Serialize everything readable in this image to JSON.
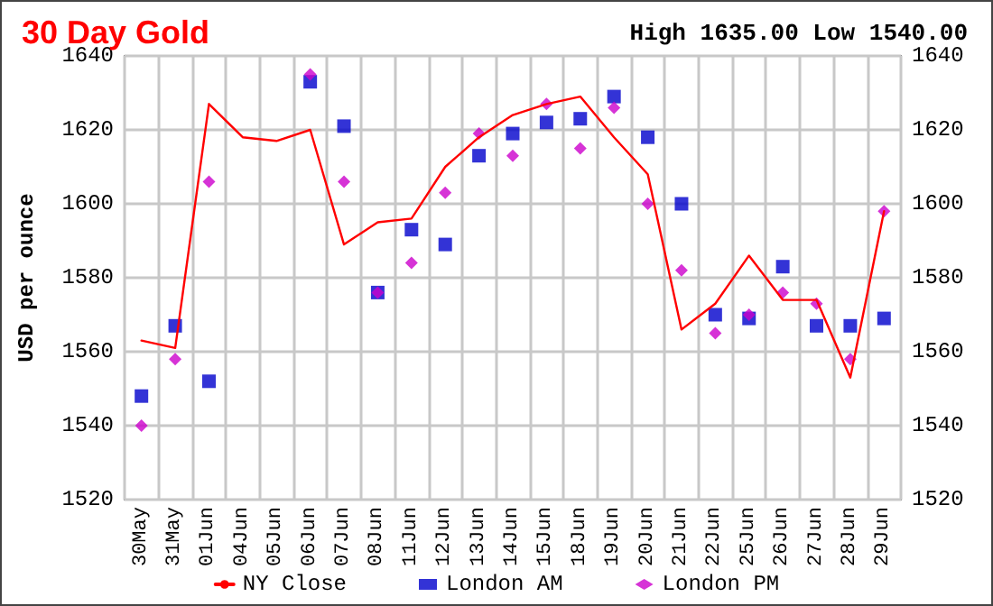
{
  "chart_data": {
    "type": "line",
    "title": "30 Day Gold",
    "annotations": [
      "High 1635.00 Low 1540.00"
    ],
    "ylabel": "USD per ounce",
    "categories": [
      "30May",
      "31May",
      "01Jun",
      "04Jun",
      "05Jun",
      "06Jun",
      "07Jun",
      "08Jun",
      "11Jun",
      "12Jun",
      "13Jun",
      "14Jun",
      "15Jun",
      "18Jun",
      "19Jun",
      "20Jun",
      "21Jun",
      "22Jun",
      "25Jun",
      "26Jun",
      "27Jun",
      "28Jun",
      "29Jun"
    ],
    "series": [
      {
        "name": "NY Close",
        "marker": "none",
        "line_style": "solid",
        "color": "#ff0000",
        "values": [
          1563,
          1561,
          1627,
          1618,
          1617,
          1620,
          1589,
          1595,
          1596,
          1610,
          1618,
          1624,
          1627,
          1629,
          1618,
          1608,
          1566,
          1573,
          1586,
          1574,
          1574,
          1553,
          1598
        ]
      },
      {
        "name": "London AM",
        "type": "scatter",
        "marker": "square",
        "color": "#0000cc",
        "values": [
          1548,
          1567,
          1552,
          null,
          null,
          1633,
          1621,
          1576,
          1593,
          1589,
          1613,
          1619,
          1622,
          1623,
          1629,
          1618,
          1600,
          1570,
          1569,
          1583,
          1567,
          1567,
          1569
        ]
      },
      {
        "name": "London PM",
        "type": "scatter",
        "marker": "diamond",
        "color": "#cc00cc",
        "values": [
          1540,
          1558,
          1606,
          null,
          null,
          1635,
          1606,
          1576,
          1584,
          1603,
          1619,
          1613,
          1627,
          1615,
          1626,
          1600,
          1582,
          1565,
          1570,
          1576,
          1573,
          1558,
          1598
        ]
      }
    ],
    "ylim": [
      1520,
      1640
    ],
    "yticks": [
      1520,
      1540,
      1560,
      1580,
      1600,
      1620,
      1640
    ],
    "y2lim": [
      1520,
      1640
    ],
    "y2ticks": [
      1520,
      1540,
      1560,
      1580,
      1600,
      1620,
      1640
    ],
    "grid": true,
    "legend": "bottom"
  }
}
